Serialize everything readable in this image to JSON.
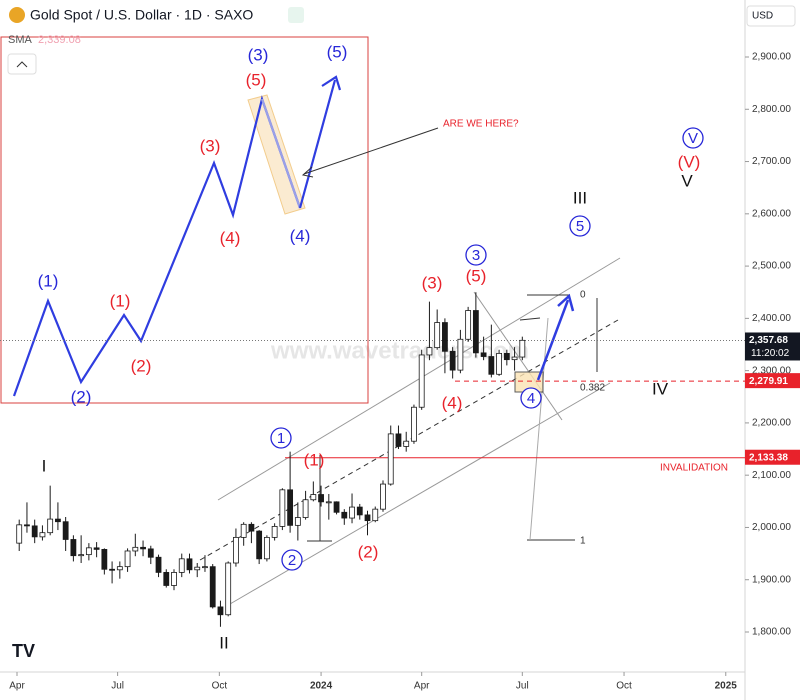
{
  "header": {
    "title": "Gold Spot / U.S. Dollar · 1D · SAXO",
    "indicator": "SMA",
    "indicator_value": "2,339.08",
    "currency": "USD",
    "watermark": "www.wavetraders.com"
  },
  "chart_data": {
    "type": "candlestick",
    "x": [
      "2023-04-03",
      "2023-04-10",
      "2023-04-17",
      "2023-04-24",
      "2023-05-01",
      "2023-05-08",
      "2023-05-15",
      "2023-05-22",
      "2023-05-29",
      "2023-06-05",
      "2023-06-12",
      "2023-06-19",
      "2023-06-26",
      "2023-07-03",
      "2023-07-10",
      "2023-07-17",
      "2023-07-24",
      "2023-07-31",
      "2023-08-07",
      "2023-08-14",
      "2023-08-21",
      "2023-08-28",
      "2023-09-04",
      "2023-09-11",
      "2023-09-18",
      "2023-09-25",
      "2023-10-02",
      "2023-10-09",
      "2023-10-16",
      "2023-10-23",
      "2023-10-30",
      "2023-11-06",
      "2023-11-13",
      "2023-11-20",
      "2023-11-27",
      "2023-12-04",
      "2023-12-11",
      "2023-12-18",
      "2023-12-25",
      "2024-01-01",
      "2024-01-08",
      "2024-01-15",
      "2024-01-22",
      "2024-01-29",
      "2024-02-05",
      "2024-02-12",
      "2024-02-19",
      "2024-02-26",
      "2024-03-04",
      "2024-03-11",
      "2024-03-18",
      "2024-03-25",
      "2024-04-01",
      "2024-04-08",
      "2024-04-15",
      "2024-04-22",
      "2024-04-29",
      "2024-05-06",
      "2024-05-13",
      "2024-05-20",
      "2024-05-27",
      "2024-06-03",
      "2024-06-10",
      "2024-06-17",
      "2024-06-24",
      "2024-07-01"
    ],
    "open": [
      1970,
      2005,
      2003,
      1982,
      1990,
      2016,
      2011,
      1977,
      1946,
      1948,
      1961,
      1958,
      1920,
      1919,
      1925,
      1955,
      1962,
      1959,
      1943,
      1914,
      1889,
      1914,
      1940,
      1919,
      1924,
      1925,
      1848,
      1833,
      1932,
      1981,
      2006,
      1993,
      1940,
      1981,
      2002,
      2072,
      2004,
      2019,
      2053,
      2063,
      2049,
      2049,
      2029,
      2018,
      2039,
      2024,
      2013,
      2035,
      2083,
      2179,
      2155,
      2165,
      2230,
      2330,
      2344,
      2392,
      2337,
      2301,
      2360,
      2415,
      2334,
      2327,
      2293,
      2333,
      2321,
      2326
    ],
    "high": [
      2015,
      2048,
      2015,
      2004,
      2080,
      2048,
      2020,
      1985,
      1985,
      1970,
      1972,
      1960,
      1935,
      1935,
      1960,
      1988,
      1975,
      1965,
      1948,
      1920,
      1920,
      1950,
      1950,
      1932,
      1947,
      1930,
      1860,
      1935,
      1998,
      2010,
      2010,
      1995,
      1985,
      2008,
      2075,
      2145,
      2048,
      2070,
      2088,
      2080,
      2064,
      2050,
      2035,
      2065,
      2045,
      2032,
      2040,
      2090,
      2195,
      2195,
      2183,
      2235,
      2340,
      2432,
      2417,
      2400,
      2345,
      2378,
      2422,
      2450,
      2365,
      2388,
      2340,
      2340,
      2345,
      2365
    ],
    "low": [
      1955,
      1990,
      1970,
      1975,
      1985,
      1995,
      1955,
      1935,
      1932,
      1937,
      1943,
      1910,
      1893,
      1902,
      1915,
      1945,
      1945,
      1930,
      1905,
      1885,
      1880,
      1905,
      1912,
      1905,
      1915,
      1845,
      1810,
      1830,
      1925,
      1965,
      1970,
      1930,
      1935,
      1975,
      1995,
      1990,
      1975,
      2015,
      2050,
      2040,
      2015,
      2025,
      2005,
      2008,
      2015,
      1985,
      2010,
      2030,
      2080,
      2150,
      2145,
      2160,
      2225,
      2320,
      2340,
      2295,
      2285,
      2295,
      2355,
      2325,
      2320,
      2287,
      2290,
      2310,
      2300,
      2320
    ],
    "close": [
      2005,
      2003,
      1982,
      1990,
      2016,
      2011,
      1977,
      1946,
      1948,
      1961,
      1958,
      1920,
      1919,
      1925,
      1955,
      1962,
      1959,
      1943,
      1914,
      1889,
      1914,
      1940,
      1919,
      1924,
      1925,
      1848,
      1833,
      1932,
      1981,
      2006,
      1993,
      1940,
      1981,
      2002,
      2072,
      2004,
      2019,
      2053,
      2063,
      2049,
      2049,
      2029,
      2018,
      2039,
      2024,
      2013,
      2035,
      2083,
      2179,
      2155,
      2165,
      2230,
      2330,
      2344,
      2392,
      2337,
      2301,
      2360,
      2415,
      2334,
      2327,
      2293,
      2333,
      2321,
      2326,
      2358
    ],
    "color": "#1a1a1a",
    "ylim": [
      1750,
      3000
    ],
    "yticks": [
      {
        "value": 1800,
        "label": "1,800.00"
      },
      {
        "value": 1900,
        "label": "1,900.00"
      },
      {
        "value": 2000,
        "label": "2,000.00"
      },
      {
        "value": 2100,
        "label": "2,100.00"
      },
      {
        "value": 2200,
        "label": "2,200.00"
      },
      {
        "value": 2300,
        "label": "2,300.00"
      },
      {
        "value": 2400,
        "label": "2,400.00"
      },
      {
        "value": 2500,
        "label": "2,500.00"
      },
      {
        "value": 2600,
        "label": "2,600.00"
      },
      {
        "value": 2700,
        "label": "2,700.00"
      },
      {
        "value": 2800,
        "label": "2,800.00"
      },
      {
        "value": 2900,
        "label": "2,900.00"
      }
    ],
    "xticks": [
      {
        "value": "2023-04-01",
        "label": "Apr"
      },
      {
        "value": "2023-07-01",
        "label": "Jul"
      },
      {
        "value": "2023-10-01",
        "label": "Oct"
      },
      {
        "value": "2024-01-01",
        "label": "2024"
      },
      {
        "value": "2024-04-01",
        "label": "Apr"
      },
      {
        "value": "2024-07-01",
        "label": "Jul"
      },
      {
        "value": "2024-10-01",
        "label": "Oct"
      },
      {
        "value": "2025-01-01",
        "label": "2025"
      }
    ],
    "grid": false,
    "price_levels": [
      {
        "value": 2357.68,
        "label": "2,357.68",
        "countdown": "11:20:02",
        "color": "#131722"
      },
      {
        "value": 2279.91,
        "label": "2,279.91",
        "color": "#e8222b"
      },
      {
        "value": 2133.38,
        "label": "2,133.38",
        "color": "#e8222b",
        "note": "INVALIDATION"
      }
    ],
    "fib_labels": [
      "0",
      "0.382",
      "1"
    ],
    "callout": "ARE WE HERE?",
    "annotations": [
      {
        "text": "I",
        "color": "#111"
      },
      {
        "text": "II",
        "color": "#111"
      },
      {
        "text": "1",
        "color": "#2727d8",
        "circled": true
      },
      {
        "text": "2",
        "color": "#2727d8",
        "circled": true
      },
      {
        "text": "(1)",
        "color": "#e8222b"
      },
      {
        "text": "(2)",
        "color": "#e8222b"
      },
      {
        "text": "(3)",
        "color": "#e8222b"
      },
      {
        "text": "3",
        "color": "#2727d8",
        "circled": true
      },
      {
        "text": "(5)",
        "color": "#e8222b"
      },
      {
        "text": "(4)",
        "color": "#e8222b"
      },
      {
        "text": "4",
        "color": "#2727d8",
        "circled": true
      },
      {
        "text": "III",
        "color": "#111"
      },
      {
        "text": "5",
        "color": "#2727d8",
        "circled": true
      },
      {
        "text": "IV",
        "color": "#111"
      },
      {
        "text": "V",
        "color": "#2727d8",
        "circled": true
      },
      {
        "text": "(V)",
        "color": "#e8222b"
      },
      {
        "text": "V",
        "color": "#111"
      }
    ],
    "inset_labels": [
      {
        "text": "(1)",
        "color": "#2727d8"
      },
      {
        "text": "(2)",
        "color": "#2727d8"
      },
      {
        "text": "(1)",
        "color": "#e8222b"
      },
      {
        "text": "(2)",
        "color": "#e8222b"
      },
      {
        "text": "(3)",
        "color": "#e8222b"
      },
      {
        "text": "(4)",
        "color": "#e8222b"
      },
      {
        "text": "(5)",
        "color": "#e8222b"
      },
      {
        "text": "(3)",
        "color": "#2727d8"
      },
      {
        "text": "(4)",
        "color": "#2727d8"
      },
      {
        "text": "(5)",
        "color": "#2727d8"
      }
    ]
  }
}
